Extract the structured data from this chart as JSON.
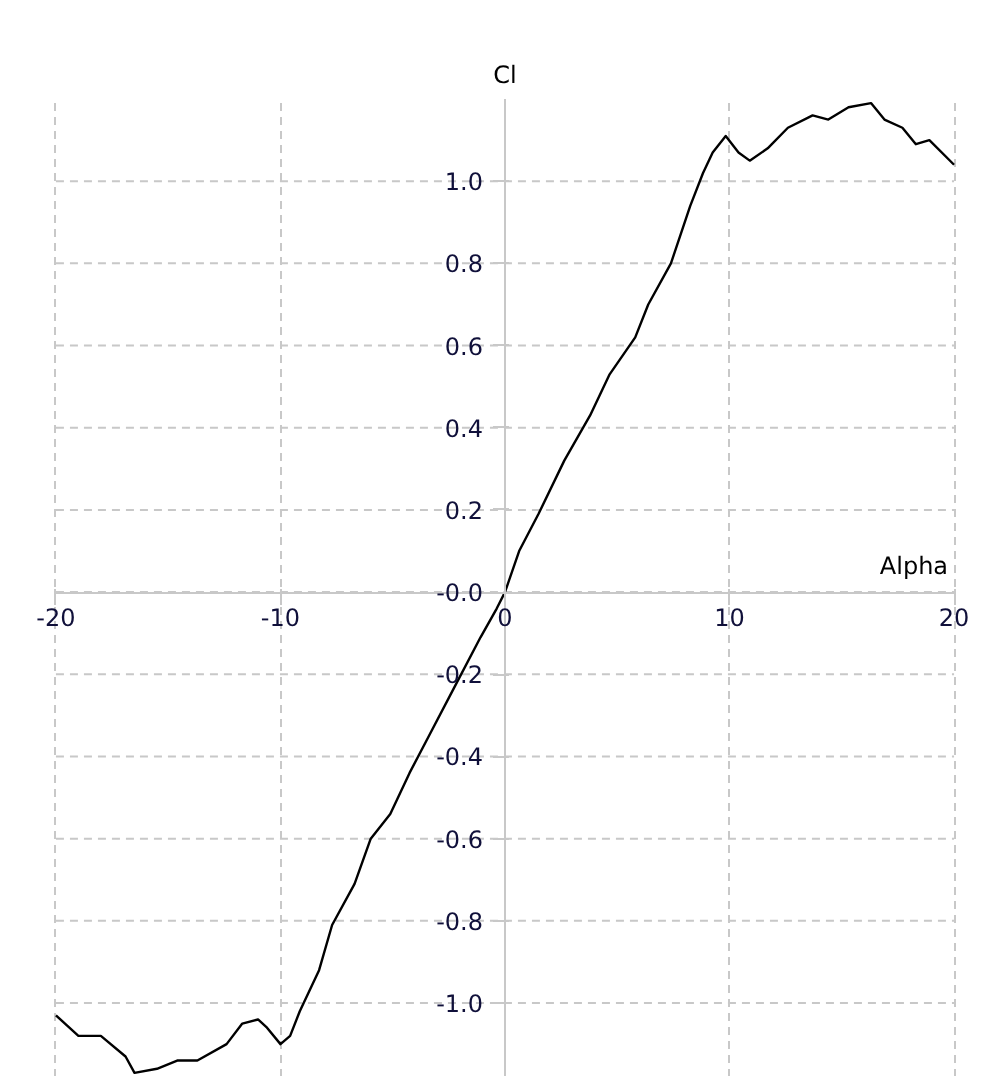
{
  "chart_data": {
    "type": "line",
    "title": "Cl",
    "xlabel": "Alpha",
    "x": [
      -20,
      -19,
      -18,
      -16.9,
      -16.5,
      -15.5,
      -14.6,
      -13.7,
      -12.4,
      -11.7,
      -11,
      -10.6,
      -10,
      -9.57,
      -9.14,
      -8.28,
      -7.7,
      -6.7,
      -5.98,
      -5.11,
      -4.25,
      -3.39,
      -2.24,
      -1.09,
      -0.37,
      0,
      0.63,
      1.49,
      2.64,
      3.79,
      4.66,
      5.8,
      6.38,
      7.39,
      8.25,
      8.82,
      9.25,
      9.83,
      10.4,
      10.9,
      11.7,
      12.6,
      13.7,
      14.4,
      15.3,
      16.3,
      16.9,
      17.7,
      18.3,
      18.9,
      20
    ],
    "series": [
      {
        "color": "#000000",
        "values": [
          -1.03,
          -1.08,
          -1.08,
          -1.13,
          -1.17,
          -1.16,
          -1.14,
          -1.14,
          -1.1,
          -1.05,
          -1.04,
          -1.06,
          -1.1,
          -1.08,
          -1.02,
          -0.92,
          -0.81,
          -0.71,
          -0.6,
          -0.54,
          -0.44,
          -0.35,
          -0.23,
          -0.11,
          -0.04,
          0,
          0.1,
          0.19,
          0.32,
          0.43,
          0.53,
          0.62,
          0.7,
          0.8,
          0.94,
          1.02,
          1.07,
          1.11,
          1.07,
          1.05,
          1.08,
          1.13,
          1.16,
          1.15,
          1.18,
          1.19,
          1.15,
          1.13,
          1.09,
          1.1,
          1.04
        ]
      }
    ],
    "xlim": [
      -20,
      20
    ],
    "ylim": [
      -1.18,
      1.2
    ],
    "xticks": [
      -20,
      -10,
      {
        "value": 0,
        "label": "0"
      },
      10,
      20
    ],
    "yticks": [
      {
        "value": -1.0,
        "label": "-1.0"
      },
      {
        "value": -0.8,
        "label": "-0.8"
      },
      {
        "value": -0.6,
        "label": "-0.6"
      },
      {
        "value": -0.4,
        "label": "-0.4"
      },
      {
        "value": -0.2,
        "label": "-0.2"
      },
      {
        "value": 0,
        "label": "-0.0"
      },
      {
        "value": 0.2,
        "label": "0.2"
      },
      {
        "value": 0.4,
        "label": "0.4"
      },
      {
        "value": 0.6,
        "label": "0.6"
      },
      {
        "value": 0.8,
        "label": "0.8"
      },
      {
        "value": 1.0,
        "label": "1.0"
      }
    ],
    "grid": true,
    "marker": "none",
    "line_style": "solid"
  }
}
